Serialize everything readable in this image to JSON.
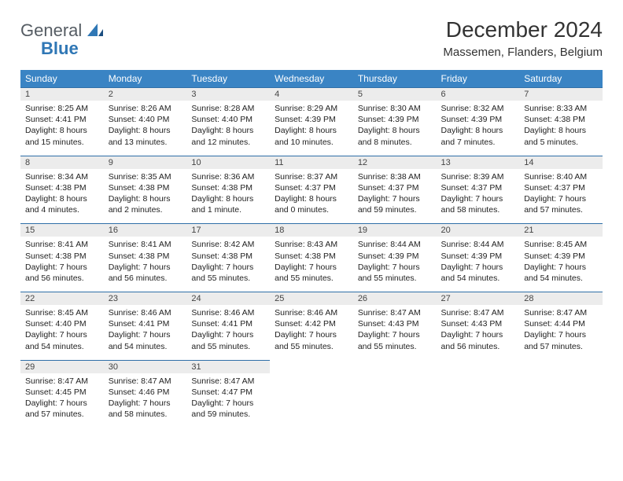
{
  "brand": {
    "general": "General",
    "blue": "Blue"
  },
  "title": "December 2024",
  "location": "Massemen, Flanders, Belgium",
  "header_bg": "#3a84c4",
  "daynum_bg": "#ececec",
  "rule_color": "#2f6fa8",
  "weekdays": [
    "Sunday",
    "Monday",
    "Tuesday",
    "Wednesday",
    "Thursday",
    "Friday",
    "Saturday"
  ],
  "days": [
    {
      "n": "1",
      "sr": "Sunrise: 8:25 AM",
      "ss": "Sunset: 4:41 PM",
      "dl": "Daylight: 8 hours and 15 minutes."
    },
    {
      "n": "2",
      "sr": "Sunrise: 8:26 AM",
      "ss": "Sunset: 4:40 PM",
      "dl": "Daylight: 8 hours and 13 minutes."
    },
    {
      "n": "3",
      "sr": "Sunrise: 8:28 AM",
      "ss": "Sunset: 4:40 PM",
      "dl": "Daylight: 8 hours and 12 minutes."
    },
    {
      "n": "4",
      "sr": "Sunrise: 8:29 AM",
      "ss": "Sunset: 4:39 PM",
      "dl": "Daylight: 8 hours and 10 minutes."
    },
    {
      "n": "5",
      "sr": "Sunrise: 8:30 AM",
      "ss": "Sunset: 4:39 PM",
      "dl": "Daylight: 8 hours and 8 minutes."
    },
    {
      "n": "6",
      "sr": "Sunrise: 8:32 AM",
      "ss": "Sunset: 4:39 PM",
      "dl": "Daylight: 8 hours and 7 minutes."
    },
    {
      "n": "7",
      "sr": "Sunrise: 8:33 AM",
      "ss": "Sunset: 4:38 PM",
      "dl": "Daylight: 8 hours and 5 minutes."
    },
    {
      "n": "8",
      "sr": "Sunrise: 8:34 AM",
      "ss": "Sunset: 4:38 PM",
      "dl": "Daylight: 8 hours and 4 minutes."
    },
    {
      "n": "9",
      "sr": "Sunrise: 8:35 AM",
      "ss": "Sunset: 4:38 PM",
      "dl": "Daylight: 8 hours and 2 minutes."
    },
    {
      "n": "10",
      "sr": "Sunrise: 8:36 AM",
      "ss": "Sunset: 4:38 PM",
      "dl": "Daylight: 8 hours and 1 minute."
    },
    {
      "n": "11",
      "sr": "Sunrise: 8:37 AM",
      "ss": "Sunset: 4:37 PM",
      "dl": "Daylight: 8 hours and 0 minutes."
    },
    {
      "n": "12",
      "sr": "Sunrise: 8:38 AM",
      "ss": "Sunset: 4:37 PM",
      "dl": "Daylight: 7 hours and 59 minutes."
    },
    {
      "n": "13",
      "sr": "Sunrise: 8:39 AM",
      "ss": "Sunset: 4:37 PM",
      "dl": "Daylight: 7 hours and 58 minutes."
    },
    {
      "n": "14",
      "sr": "Sunrise: 8:40 AM",
      "ss": "Sunset: 4:37 PM",
      "dl": "Daylight: 7 hours and 57 minutes."
    },
    {
      "n": "15",
      "sr": "Sunrise: 8:41 AM",
      "ss": "Sunset: 4:38 PM",
      "dl": "Daylight: 7 hours and 56 minutes."
    },
    {
      "n": "16",
      "sr": "Sunrise: 8:41 AM",
      "ss": "Sunset: 4:38 PM",
      "dl": "Daylight: 7 hours and 56 minutes."
    },
    {
      "n": "17",
      "sr": "Sunrise: 8:42 AM",
      "ss": "Sunset: 4:38 PM",
      "dl": "Daylight: 7 hours and 55 minutes."
    },
    {
      "n": "18",
      "sr": "Sunrise: 8:43 AM",
      "ss": "Sunset: 4:38 PM",
      "dl": "Daylight: 7 hours and 55 minutes."
    },
    {
      "n": "19",
      "sr": "Sunrise: 8:44 AM",
      "ss": "Sunset: 4:39 PM",
      "dl": "Daylight: 7 hours and 55 minutes."
    },
    {
      "n": "20",
      "sr": "Sunrise: 8:44 AM",
      "ss": "Sunset: 4:39 PM",
      "dl": "Daylight: 7 hours and 54 minutes."
    },
    {
      "n": "21",
      "sr": "Sunrise: 8:45 AM",
      "ss": "Sunset: 4:39 PM",
      "dl": "Daylight: 7 hours and 54 minutes."
    },
    {
      "n": "22",
      "sr": "Sunrise: 8:45 AM",
      "ss": "Sunset: 4:40 PM",
      "dl": "Daylight: 7 hours and 54 minutes."
    },
    {
      "n": "23",
      "sr": "Sunrise: 8:46 AM",
      "ss": "Sunset: 4:41 PM",
      "dl": "Daylight: 7 hours and 54 minutes."
    },
    {
      "n": "24",
      "sr": "Sunrise: 8:46 AM",
      "ss": "Sunset: 4:41 PM",
      "dl": "Daylight: 7 hours and 55 minutes."
    },
    {
      "n": "25",
      "sr": "Sunrise: 8:46 AM",
      "ss": "Sunset: 4:42 PM",
      "dl": "Daylight: 7 hours and 55 minutes."
    },
    {
      "n": "26",
      "sr": "Sunrise: 8:47 AM",
      "ss": "Sunset: 4:43 PM",
      "dl": "Daylight: 7 hours and 55 minutes."
    },
    {
      "n": "27",
      "sr": "Sunrise: 8:47 AM",
      "ss": "Sunset: 4:43 PM",
      "dl": "Daylight: 7 hours and 56 minutes."
    },
    {
      "n": "28",
      "sr": "Sunrise: 8:47 AM",
      "ss": "Sunset: 4:44 PM",
      "dl": "Daylight: 7 hours and 57 minutes."
    },
    {
      "n": "29",
      "sr": "Sunrise: 8:47 AM",
      "ss": "Sunset: 4:45 PM",
      "dl": "Daylight: 7 hours and 57 minutes."
    },
    {
      "n": "30",
      "sr": "Sunrise: 8:47 AM",
      "ss": "Sunset: 4:46 PM",
      "dl": "Daylight: 7 hours and 58 minutes."
    },
    {
      "n": "31",
      "sr": "Sunrise: 8:47 AM",
      "ss": "Sunset: 4:47 PM",
      "dl": "Daylight: 7 hours and 59 minutes."
    }
  ]
}
